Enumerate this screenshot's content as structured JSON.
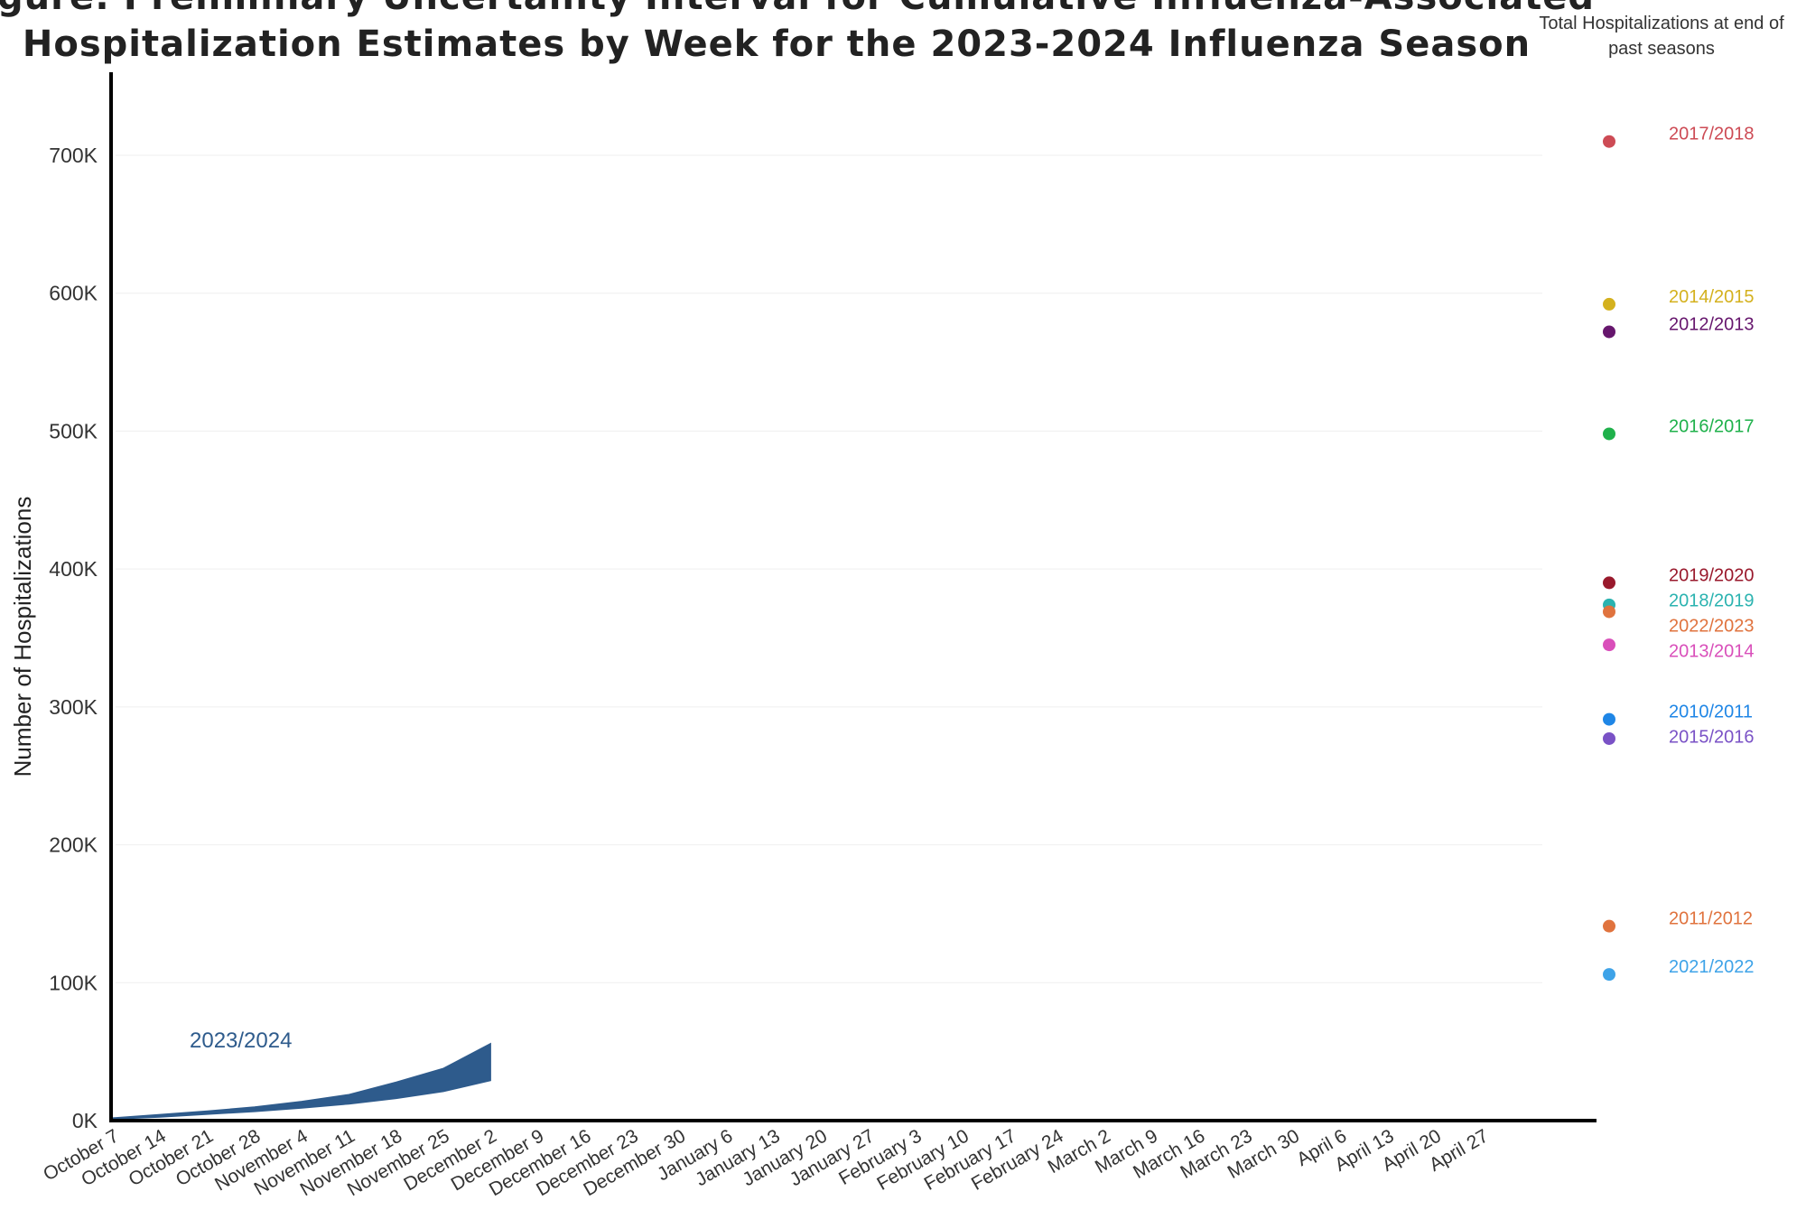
{
  "chart_data": {
    "type": "area",
    "title": "Figure: Preliminary Uncertainty Interval for Cumulative Influenza-Associated Hospitalization Estimates by Week for the 2023-2024 Influenza Season",
    "title_lines": [
      "Figure: Preliminary Uncertainty Interval for Cumulative Influenza-Associated",
      "Hospitalization Estimates by Week for the 2023-2024 Influenza Season"
    ],
    "xlabel": "",
    "ylabel": "Number of Hospitalizations",
    "ylim": [
      0,
      760000
    ],
    "yticks": [
      0,
      100000,
      200000,
      300000,
      400000,
      500000,
      600000,
      700000
    ],
    "ytick_labels": [
      "0K",
      "100K",
      "200K",
      "300K",
      "400K",
      "500K",
      "600K",
      "700K"
    ],
    "grid": true,
    "categories": [
      "October 7",
      "October 14",
      "October 21",
      "October 28",
      "November 4",
      "November 11",
      "November 18",
      "November 25",
      "December 2",
      "December 9",
      "December 16",
      "December 23",
      "December 30",
      "January 6",
      "January 13",
      "January 20",
      "January 27",
      "February 3",
      "February 10",
      "February 17",
      "February 24",
      "March 2",
      "March 9",
      "March 16",
      "March 23",
      "March 30",
      "April 6",
      "April 13",
      "April 20",
      "April 27"
    ],
    "series": [
      {
        "name": "2023/2024",
        "color": "#2e5b8c",
        "lower": [
          1000,
          2500,
          4500,
          6500,
          9000,
          12000,
          16000,
          21000,
          29000
        ],
        "upper": [
          2000,
          4500,
          7000,
          10000,
          14000,
          19000,
          28000,
          38000,
          56000
        ]
      }
    ],
    "legend": {
      "title_lines": [
        "Total Hospitalizations at end of",
        "past seasons"
      ],
      "position": "right",
      "items": [
        {
          "season": "2017/2018",
          "value": 710000,
          "color": "#cd4b55"
        },
        {
          "season": "2014/2015",
          "value": 592000,
          "color": "#d4b11e"
        },
        {
          "season": "2012/2013",
          "value": 572000,
          "color": "#66166d"
        },
        {
          "season": "2016/2017",
          "value": 498000,
          "color": "#1fb14b"
        },
        {
          "season": "2019/2020",
          "value": 390000,
          "color": "#99192c"
        },
        {
          "season": "2018/2019",
          "value": 374000,
          "color": "#2bb3b0"
        },
        {
          "season": "2022/2023",
          "value": 369000,
          "color": "#e0733e"
        },
        {
          "season": "2013/2014",
          "value": 345000,
          "color": "#d94fba"
        },
        {
          "season": "2010/2011",
          "value": 291000,
          "color": "#1f86e6"
        },
        {
          "season": "2015/2016",
          "value": 277000,
          "color": "#7a52c6"
        },
        {
          "season": "2011/2012",
          "value": 141000,
          "color": "#e0733e"
        },
        {
          "season": "2021/2022",
          "value": 106000,
          "color": "#3ea3e8"
        }
      ]
    }
  }
}
